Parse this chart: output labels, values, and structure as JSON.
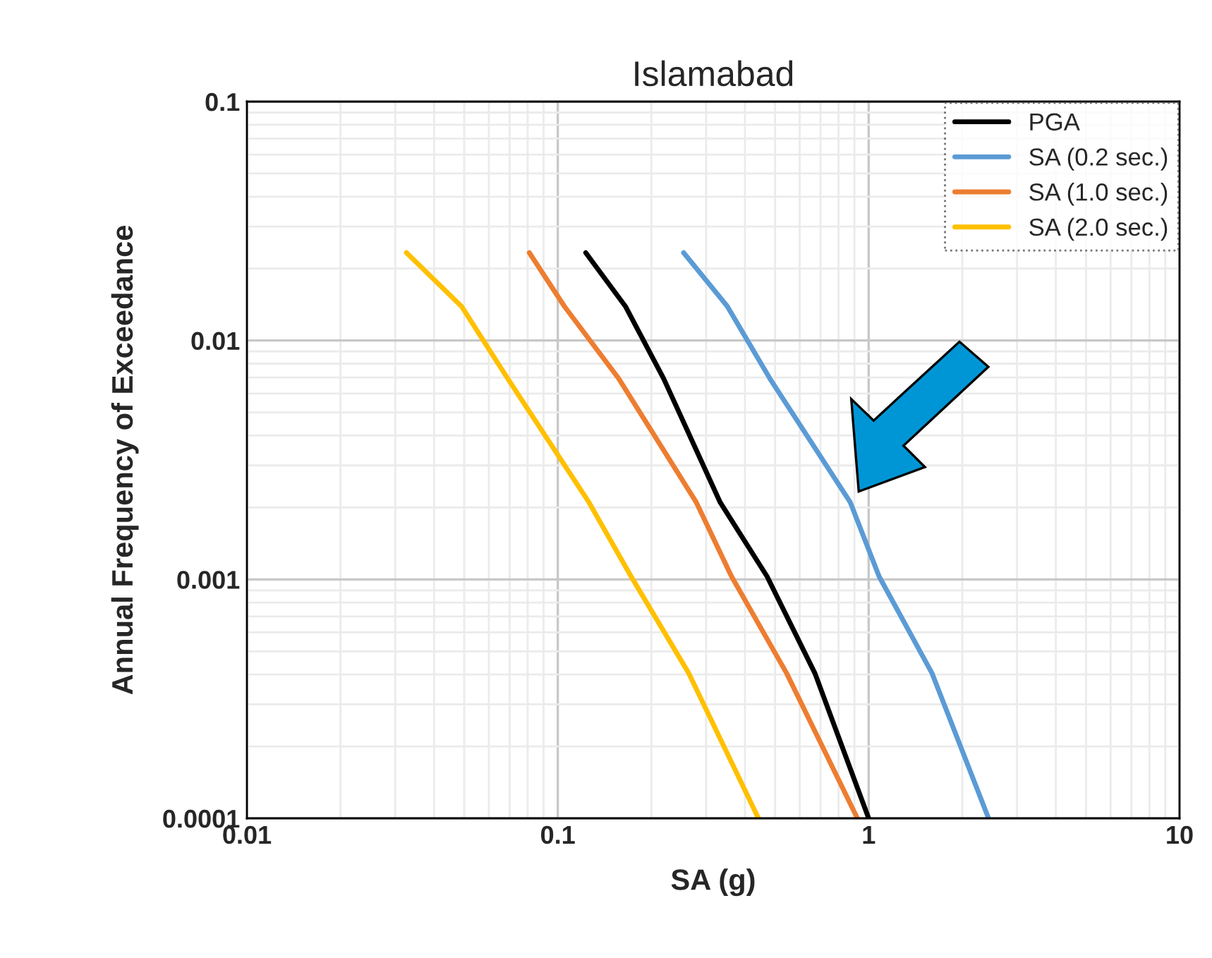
{
  "chart_data": {
    "type": "line",
    "title": "Islamabad",
    "xlabel": "SA (g)",
    "ylabel": "Annual Frequency of Exceedance",
    "log": "xy",
    "grid": true,
    "legend": "top right",
    "marker": "none",
    "line_style": "solid",
    "xlim": [
      0.01,
      10
    ],
    "ylim": [
      0.0001,
      0.1
    ],
    "xticks": [
      0.01,
      0.1,
      1,
      10
    ],
    "yticks": [
      0.0001,
      0.001,
      0.01,
      0.1
    ],
    "series": [
      {
        "name": "PGA",
        "color": "#000000",
        "x": [
          0.123,
          0.165,
          0.219,
          0.333,
          0.471,
          0.672,
          1.0
        ],
        "values": [
          0.0233,
          0.0139,
          0.00693,
          0.0021,
          0.00103,
          0.000404,
          0.0001
        ]
      },
      {
        "name": "SA (0.2 sec.)",
        "color": "#5b9bd5",
        "x": [
          0.254,
          0.351,
          0.481,
          0.873,
          1.08,
          1.6,
          2.43
        ],
        "values": [
          0.0233,
          0.0139,
          0.00693,
          0.0021,
          0.00103,
          0.000404,
          0.0001
        ]
      },
      {
        "name": "SA (1.0 sec.)",
        "color": "#ed7d31",
        "x": [
          0.081,
          0.105,
          0.157,
          0.279,
          0.362,
          0.545,
          0.92
        ],
        "values": [
          0.0233,
          0.0139,
          0.00693,
          0.0021,
          0.00103,
          0.000404,
          0.0001
        ]
      },
      {
        "name": "SA (2.0 sec.)",
        "color": "#ffc000",
        "x": [
          0.0326,
          0.049,
          0.069,
          0.126,
          0.172,
          0.264,
          0.442
        ],
        "values": [
          0.0233,
          0.0139,
          0.00693,
          0.0021,
          0.00103,
          0.000404,
          0.0001
        ]
      }
    ]
  }
}
